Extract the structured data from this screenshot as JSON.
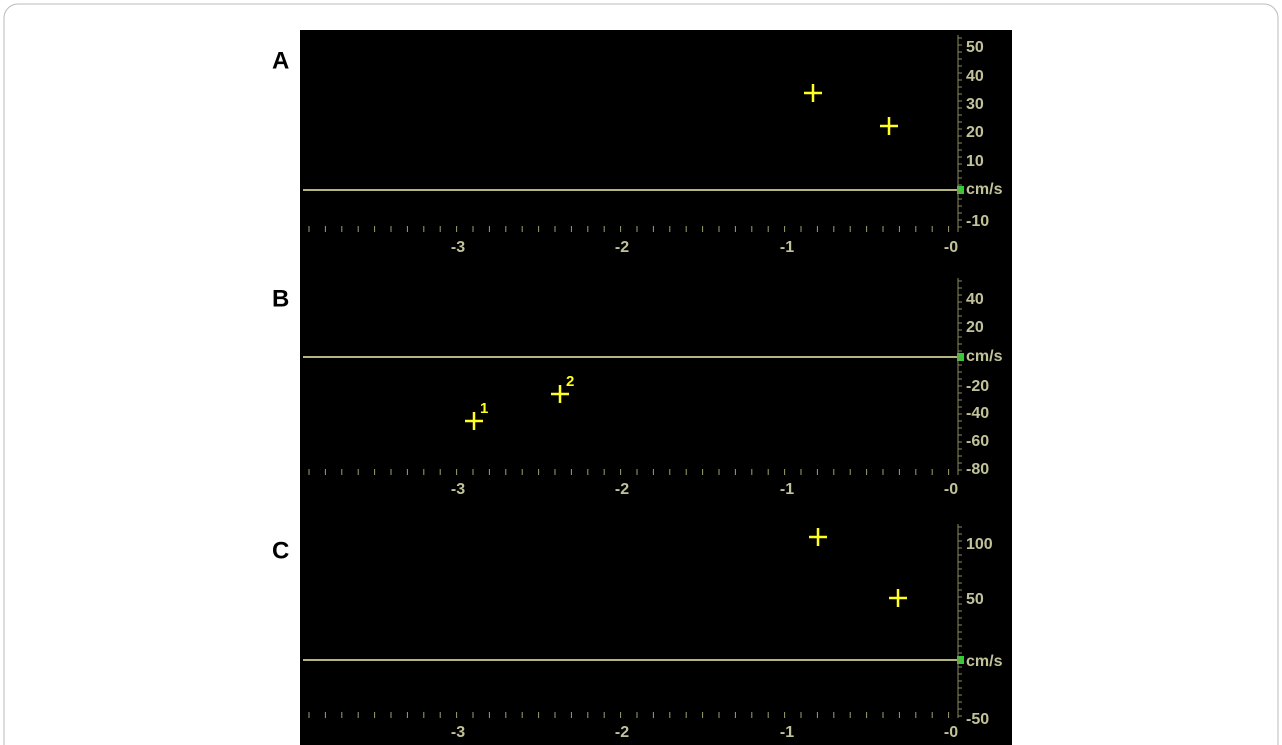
{
  "panels": [
    {
      "label": "A",
      "yticks": [
        "50",
        "40",
        "30",
        "20",
        "10",
        "cm/s",
        "-10"
      ],
      "xticks": [
        "-3",
        "-2",
        "-1",
        "-0"
      ],
      "markers": []
    },
    {
      "label": "B",
      "yticks": [
        "40",
        "20",
        "cm/s",
        "-20",
        "-40",
        "-60",
        "-80"
      ],
      "xticks": [
        "-3",
        "-2",
        "-1",
        "-0"
      ],
      "markers": [
        "1",
        "2"
      ]
    },
    {
      "label": "C",
      "yticks": [
        "100",
        "50",
        "cm/s",
        "-50"
      ],
      "xticks": [
        "-3",
        "-2",
        "-1",
        "-0"
      ],
      "markers": []
    }
  ]
}
